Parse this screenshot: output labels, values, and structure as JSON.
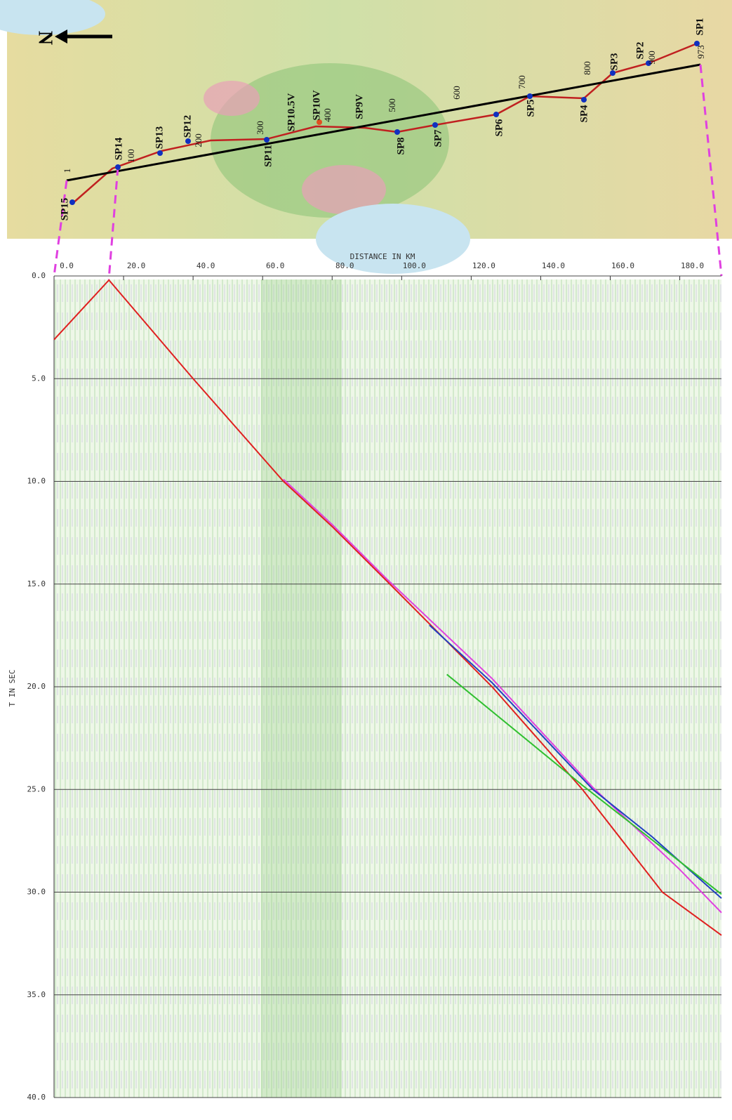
{
  "map": {
    "north_label": "N",
    "shot_points": [
      "SP1",
      "SP2",
      "SP3",
      "SP4",
      "SP5",
      "SP6",
      "SP7",
      "SP8",
      "SP9V",
      "SP10V",
      "SP10.5V",
      "SP11",
      "SP12",
      "SP13",
      "SP14",
      "SP15"
    ],
    "station_labels": [
      "1",
      "100",
      "200",
      "300",
      "400",
      "500",
      "600",
      "700",
      "800",
      "900",
      "973"
    ]
  },
  "chart_data": {
    "type": "line",
    "x_label": "DISTANCE IN KM",
    "y_label": "T IN SEC",
    "xlim": [
      0,
      192
    ],
    "ylim": [
      0,
      40
    ],
    "grid": true,
    "xticks": [
      {
        "value": 0,
        "label": "0.0"
      },
      {
        "value": 20,
        "label": "20.0"
      },
      {
        "value": 40,
        "label": "40.0"
      },
      {
        "value": 60,
        "label": "60.0"
      },
      {
        "value": 80,
        "label": "80.0"
      },
      {
        "value": 100,
        "label": "100.0"
      },
      {
        "value": 120,
        "label": "120.0"
      },
      {
        "value": 140,
        "label": "140.0"
      },
      {
        "value": 160,
        "label": "160.0"
      },
      {
        "value": 180,
        "label": "180.0"
      }
    ],
    "yticks": [
      {
        "value": 0,
        "label": "0.0"
      },
      {
        "value": 5,
        "label": "5.0"
      },
      {
        "value": 10,
        "label": "10.0"
      },
      {
        "value": 15,
        "label": "15.0"
      },
      {
        "value": 20,
        "label": "20.0"
      },
      {
        "value": 25,
        "label": "25.0"
      },
      {
        "value": 30,
        "label": "30.0"
      },
      {
        "value": 35,
        "label": "35.0"
      },
      {
        "value": 40,
        "label": "40.0"
      }
    ],
    "series": [
      {
        "color": "#e02020",
        "x": [
          0,
          15.8,
          40,
          66,
          80,
          96.6,
          126,
          152,
          175,
          192
        ],
        "values": [
          3.1,
          0.2,
          5,
          10,
          12.2,
          15,
          20,
          25,
          30,
          32.1
        ]
      },
      {
        "color": "#e040e0",
        "x": [
          66,
          80,
          96,
          126,
          155,
          180,
          192
        ],
        "values": [
          9.9,
          12.1,
          14.8,
          19.6,
          24.9,
          28.9,
          31.0
        ]
      },
      {
        "color": "#2040c0",
        "x": [
          108,
          126,
          155,
          172,
          192
        ],
        "values": [
          17,
          19.8,
          25,
          27.3,
          30.3
        ]
      },
      {
        "color": "#30c030",
        "x": [
          113,
          152,
          192
        ],
        "values": [
          19.4,
          24.8,
          30.1
        ]
      }
    ]
  }
}
